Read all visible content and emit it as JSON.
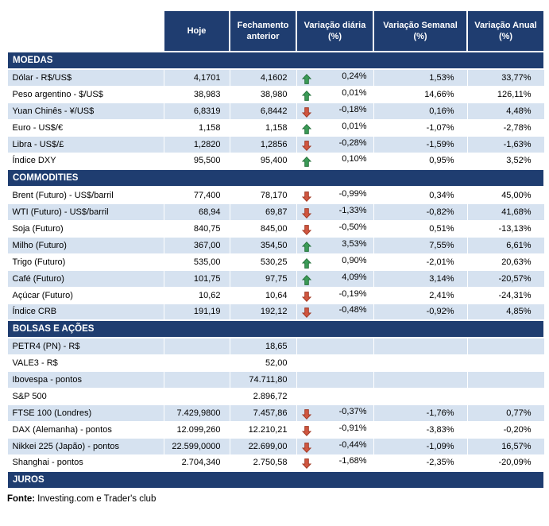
{
  "colors": {
    "navy": "#1f3d70",
    "row_shaded": "#d6e2f0",
    "arrow_up_fill": "#3b9b57",
    "arrow_up_border": "#25713b",
    "arrow_down_fill": "#d05640",
    "arrow_down_border": "#a03823"
  },
  "chart_data": {
    "type": "table",
    "columns": [
      "",
      "Hoje",
      "Fechamento anterior",
      "Variação diária (%)",
      "Variação Semanal (%)",
      "Variação Anual (%)"
    ],
    "sections": [
      {
        "title": "MOEDAS",
        "zebra_start": "shaded",
        "rows": [
          {
            "label": "Dólar - R$/US$",
            "hoje": "4,1701",
            "fechamento_anterior": "4,1602",
            "arrow": "up",
            "variacao_diaria": "0,24%",
            "variacao_semanal": "1,53%",
            "variacao_anual": "33,77%"
          },
          {
            "label": "Peso argentino - $/US$",
            "hoje": "38,983",
            "fechamento_anterior": "38,980",
            "arrow": "up",
            "variacao_diaria": "0,01%",
            "variacao_semanal": "14,66%",
            "variacao_anual": "126,11%"
          },
          {
            "label": "Yuan Chinês - ¥/US$",
            "hoje": "6,8319",
            "fechamento_anterior": "6,8442",
            "arrow": "down",
            "variacao_diaria": "-0,18%",
            "variacao_semanal": "0,16%",
            "variacao_anual": "4,48%"
          },
          {
            "label": "Euro - US$/€",
            "hoje": "1,158",
            "fechamento_anterior": "1,158",
            "arrow": "up",
            "variacao_diaria": "0,01%",
            "variacao_semanal": "-1,07%",
            "variacao_anual": "-2,78%"
          },
          {
            "label": "Libra - US$/£",
            "hoje": "1,2820",
            "fechamento_anterior": "1,2856",
            "arrow": "down",
            "variacao_diaria": "-0,28%",
            "variacao_semanal": "-1,59%",
            "variacao_anual": "-1,63%"
          },
          {
            "label": "Índice DXY",
            "hoje": "95,500",
            "fechamento_anterior": "95,400",
            "arrow": "up",
            "variacao_diaria": "0,10%",
            "variacao_semanal": "0,95%",
            "variacao_anual": "3,52%"
          }
        ]
      },
      {
        "title": "COMMODITIES",
        "zebra_start": "white",
        "rows": [
          {
            "label": "Brent (Futuro) - US$/barril",
            "hoje": "77,400",
            "fechamento_anterior": "78,170",
            "arrow": "down",
            "variacao_diaria": "-0,99%",
            "variacao_semanal": "0,34%",
            "variacao_anual": "45,00%"
          },
          {
            "label": "WTI (Futuro) - US$/barril",
            "hoje": "68,94",
            "fechamento_anterior": "69,87",
            "arrow": "down",
            "variacao_diaria": "-1,33%",
            "variacao_semanal": "-0,82%",
            "variacao_anual": "41,68%"
          },
          {
            "label": "Soja (Futuro)",
            "hoje": "840,75",
            "fechamento_anterior": "845,00",
            "arrow": "down",
            "variacao_diaria": "-0,50%",
            "variacao_semanal": "0,51%",
            "variacao_anual": "-13,13%"
          },
          {
            "label": "Milho (Futuro)",
            "hoje": "367,00",
            "fechamento_anterior": "354,50",
            "arrow": "up",
            "variacao_diaria": "3,53%",
            "variacao_semanal": "7,55%",
            "variacao_anual": "6,61%"
          },
          {
            "label": "Trigo (Futuro)",
            "hoje": "535,00",
            "fechamento_anterior": "530,25",
            "arrow": "up",
            "variacao_diaria": "0,90%",
            "variacao_semanal": "-2,01%",
            "variacao_anual": "20,63%"
          },
          {
            "label": "Café (Futuro)",
            "hoje": "101,75",
            "fechamento_anterior": "97,75",
            "arrow": "up",
            "variacao_diaria": "4,09%",
            "variacao_semanal": "3,14%",
            "variacao_anual": "-20,57%"
          },
          {
            "label": "Açúcar (Futuro)",
            "hoje": "10,62",
            "fechamento_anterior": "10,64",
            "arrow": "down",
            "variacao_diaria": "-0,19%",
            "variacao_semanal": "2,41%",
            "variacao_anual": "-24,31%"
          },
          {
            "label": "Índice CRB",
            "hoje": "191,19",
            "fechamento_anterior": "192,12",
            "arrow": "down",
            "variacao_diaria": "-0,48%",
            "variacao_semanal": "-0,92%",
            "variacao_anual": "4,85%"
          }
        ]
      },
      {
        "title": "BOLSAS E AÇÕES",
        "zebra_start": "shaded",
        "rows": [
          {
            "label": "PETR4 (PN) - R$",
            "hoje": "",
            "fechamento_anterior": "18,65",
            "arrow": "",
            "variacao_diaria": "",
            "variacao_semanal": "",
            "variacao_anual": ""
          },
          {
            "label": "VALE3 - R$",
            "hoje": "",
            "fechamento_anterior": "52,00",
            "arrow": "",
            "variacao_diaria": "",
            "variacao_semanal": "",
            "variacao_anual": ""
          },
          {
            "label": "Ibovespa - pontos",
            "hoje": "",
            "fechamento_anterior": "74.711,80",
            "arrow": "",
            "variacao_diaria": "",
            "variacao_semanal": "",
            "variacao_anual": ""
          },
          {
            "label": "S&P 500",
            "hoje": "",
            "fechamento_anterior": "2.896,72",
            "arrow": "",
            "variacao_diaria": "",
            "variacao_semanal": "",
            "variacao_anual": ""
          },
          {
            "label": "FTSE 100 (Londres)",
            "hoje": "7.429,9800",
            "fechamento_anterior": "7.457,86",
            "arrow": "down",
            "variacao_diaria": "-0,37%",
            "variacao_semanal": "-1,76%",
            "variacao_anual": "0,77%"
          },
          {
            "label": "DAX (Alemanha) - pontos",
            "hoje": "12.099,260",
            "fechamento_anterior": "12.210,21",
            "arrow": "down",
            "variacao_diaria": "-0,91%",
            "variacao_semanal": "-3,83%",
            "variacao_anual": "-0,20%"
          },
          {
            "label": "Nikkei 225 (Japão) - pontos",
            "hoje": "22.599,0000",
            "fechamento_anterior": "22.699,00",
            "arrow": "down",
            "variacao_diaria": "-0,44%",
            "variacao_semanal": "-1,09%",
            "variacao_anual": "16,57%"
          },
          {
            "label": "Shanghai - pontos",
            "hoje": "2.704,340",
            "fechamento_anterior": "2.750,58",
            "arrow": "down",
            "variacao_diaria": "-1,68%",
            "variacao_semanal": "-2,35%",
            "variacao_anual": "-20,09%"
          }
        ]
      },
      {
        "title": "JUROS",
        "zebra_start": "shaded",
        "rows": []
      }
    ],
    "source": {
      "label": "Fonte:",
      "text": "Investing.com e Trader's club"
    }
  }
}
